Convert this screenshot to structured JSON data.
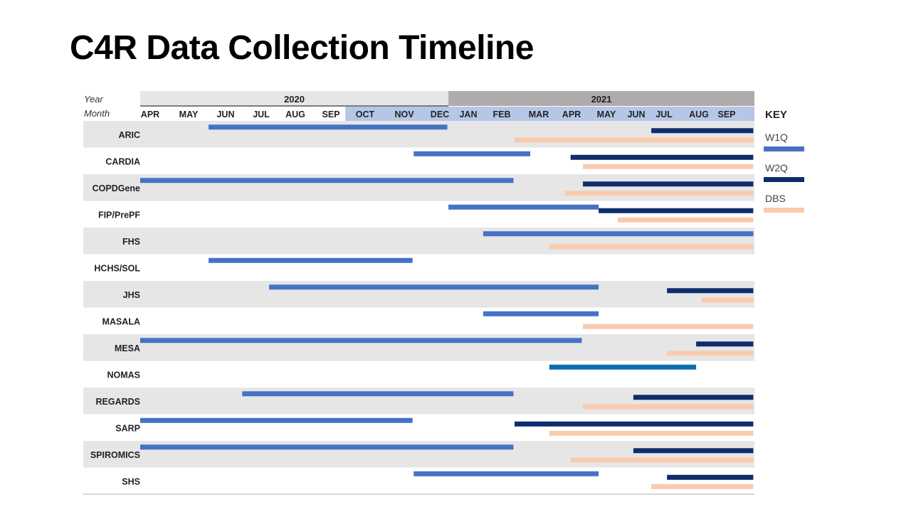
{
  "slide": {
    "title": "C4R Data Collection Timeline"
  },
  "chart_data": {
    "type": "gantt",
    "title": "C4R Data Collection Timeline",
    "row_label_year": "Year",
    "row_label_month": "Month",
    "years": [
      {
        "label": "2020",
        "start": "2020-04",
        "end": "2021-01"
      },
      {
        "label": "2021",
        "start": "2021-01",
        "end": "2021-10"
      }
    ],
    "months": [
      "APR",
      "MAY",
      "JUN",
      "JUL",
      "AUG",
      "SEP",
      "OCT",
      "NOV",
      "DEC",
      "JAN",
      "FEB",
      "MAR",
      "APR",
      "MAY",
      "JUN",
      "JUL",
      "AUG",
      "SEP"
    ],
    "key_title": "KEY",
    "legend": [
      {
        "name": "W1Q",
        "color": "#4472C4"
      },
      {
        "name": "W2Q",
        "color": "#0D2D6C"
      },
      {
        "name": "DBS",
        "color": "#F8CBAD"
      }
    ],
    "colors": {
      "W1Q": "#4472C4",
      "W2Q": "#0D2D6C",
      "DBS": "#F8CBAD",
      "alt": "#0E6CB5",
      "year2020": "#E7E6E6",
      "year2021": "#AFABAB",
      "monthHighlight": "#B4C7E7",
      "rowShade": "#E7E6E6"
    },
    "cohorts": [
      {
        "name": "ARIC",
        "bars": [
          {
            "type": "W1Q",
            "start": "2020-06-01",
            "end": "2020-12-31"
          },
          {
            "type": "W2Q",
            "start": "2021-07-01",
            "end": "2021-09-30"
          },
          {
            "type": "DBS",
            "start": "2021-03-01",
            "end": "2021-09-30"
          }
        ]
      },
      {
        "name": "CARDIA",
        "bars": [
          {
            "type": "W1Q",
            "start": "2020-12-01",
            "end": "2021-03-15"
          },
          {
            "type": "W2Q",
            "start": "2021-04-20",
            "end": "2021-09-30"
          },
          {
            "type": "DBS",
            "start": "2021-05-01",
            "end": "2021-09-30"
          }
        ]
      },
      {
        "name": "COPDGene",
        "bars": [
          {
            "type": "W1Q",
            "start": "2020-04-01",
            "end": "2021-02-28"
          },
          {
            "type": "W2Q",
            "start": "2021-05-01",
            "end": "2021-09-30"
          },
          {
            "type": "DBS",
            "start": "2021-04-15",
            "end": "2021-09-30"
          }
        ]
      },
      {
        "name": "FIP/PrePF",
        "bars": [
          {
            "type": "W1Q",
            "start": "2021-01-01",
            "end": "2021-05-15"
          },
          {
            "type": "W2Q",
            "start": "2021-05-15",
            "end": "2021-09-30"
          },
          {
            "type": "DBS",
            "start": "2021-06-01",
            "end": "2021-09-30"
          }
        ]
      },
      {
        "name": "FHS",
        "bars": [
          {
            "type": "W1Q",
            "start": "2021-02-01",
            "end": "2021-09-30"
          },
          {
            "type": "DBS",
            "start": "2021-04-01",
            "end": "2021-09-30"
          }
        ]
      },
      {
        "name": "HCHS/SOL",
        "bars": [
          {
            "type": "W1Q",
            "start": "2020-06-01",
            "end": "2020-11-30"
          }
        ]
      },
      {
        "name": "JHS",
        "bars": [
          {
            "type": "W1Q",
            "start": "2020-07-25",
            "end": "2021-05-15"
          },
          {
            "type": "W2Q",
            "start": "2021-07-15",
            "end": "2021-09-30"
          },
          {
            "type": "DBS",
            "start": "2021-08-15",
            "end": "2021-09-30"
          }
        ]
      },
      {
        "name": "MASALA",
        "bars": [
          {
            "type": "W1Q",
            "start": "2021-02-01",
            "end": "2021-05-15"
          },
          {
            "type": "DBS",
            "start": "2021-05-01",
            "end": "2021-09-30"
          }
        ]
      },
      {
        "name": "MESA",
        "bars": [
          {
            "type": "W1Q",
            "start": "2020-04-01",
            "end": "2021-04-30"
          },
          {
            "type": "W2Q",
            "start": "2021-08-10",
            "end": "2021-09-30"
          },
          {
            "type": "DBS",
            "start": "2021-07-15",
            "end": "2021-09-30"
          }
        ]
      },
      {
        "name": "NOMAS",
        "bars": [
          {
            "type": "alt",
            "start": "2021-04-01",
            "end": "2021-08-10"
          }
        ]
      },
      {
        "name": "REGARDS",
        "bars": [
          {
            "type": "W1Q",
            "start": "2020-07-01",
            "end": "2021-02-28"
          },
          {
            "type": "W2Q",
            "start": "2021-06-15",
            "end": "2021-09-30"
          },
          {
            "type": "DBS",
            "start": "2021-05-01",
            "end": "2021-09-30"
          }
        ]
      },
      {
        "name": "SARP",
        "bars": [
          {
            "type": "W1Q",
            "start": "2020-04-01",
            "end": "2020-11-30"
          },
          {
            "type": "W2Q",
            "start": "2021-03-01",
            "end": "2021-09-30"
          },
          {
            "type": "DBS",
            "start": "2021-04-01",
            "end": "2021-09-30"
          }
        ]
      },
      {
        "name": "SPIROMICS",
        "bars": [
          {
            "type": "W1Q",
            "start": "2020-04-01",
            "end": "2021-02-28"
          },
          {
            "type": "W2Q",
            "start": "2021-06-15",
            "end": "2021-09-30"
          },
          {
            "type": "DBS",
            "start": "2021-04-20",
            "end": "2021-09-30"
          }
        ]
      },
      {
        "name": "SHS",
        "bars": [
          {
            "type": "W1Q",
            "start": "2020-12-01",
            "end": "2021-05-15"
          },
          {
            "type": "W2Q",
            "start": "2021-07-15",
            "end": "2021-09-30"
          },
          {
            "type": "DBS",
            "start": "2021-07-01",
            "end": "2021-09-30"
          }
        ]
      }
    ]
  }
}
